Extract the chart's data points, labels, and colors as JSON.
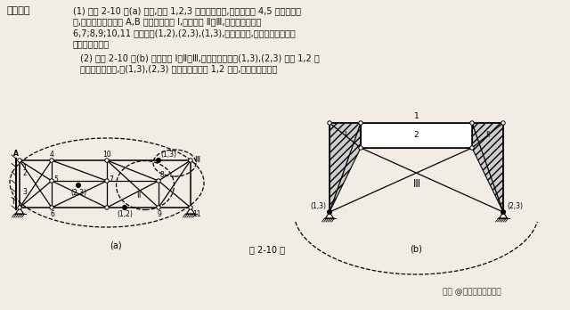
{
  "background_color": "#f2ede4",
  "text_color": "#111111",
  "heading": "解题过程",
  "para1_line1": "(1) 如解 2-10 图(a) 所示,链杆 1,2,3 构成一个刚片,加上二元体 4,5 是一个新刚",
  "para1_line2": "片,与大地之间由支座 A,B 相连即为刚片 Ⅰ,易得刚片 Ⅱ、Ⅲ,三刚片分别由杆",
  "para1_line3": "6,7;8,9;10,11 相连交于(1,2),(2,3),(1,3),三铰不共线,故为几何不变体系",
  "para1_line4": "且无多余约束。",
  "para2_line1": "(2) 如解 2-10 图(b) 所示刚片 Ⅰ、Ⅱ、Ⅲ,三刚片分别由铰(1,3),(2,3) 及杆 1,2 交",
  "para2_line2": "于无穷远处虚铰,但(1,3),(2,3) 连线与平行链杆 1,2 平行,故体系为瞬变。",
  "caption": "解 2-10 图",
  "watermark": "头条 @学槿课后答案解析",
  "label_a": "(a)",
  "label_b": "(b)"
}
